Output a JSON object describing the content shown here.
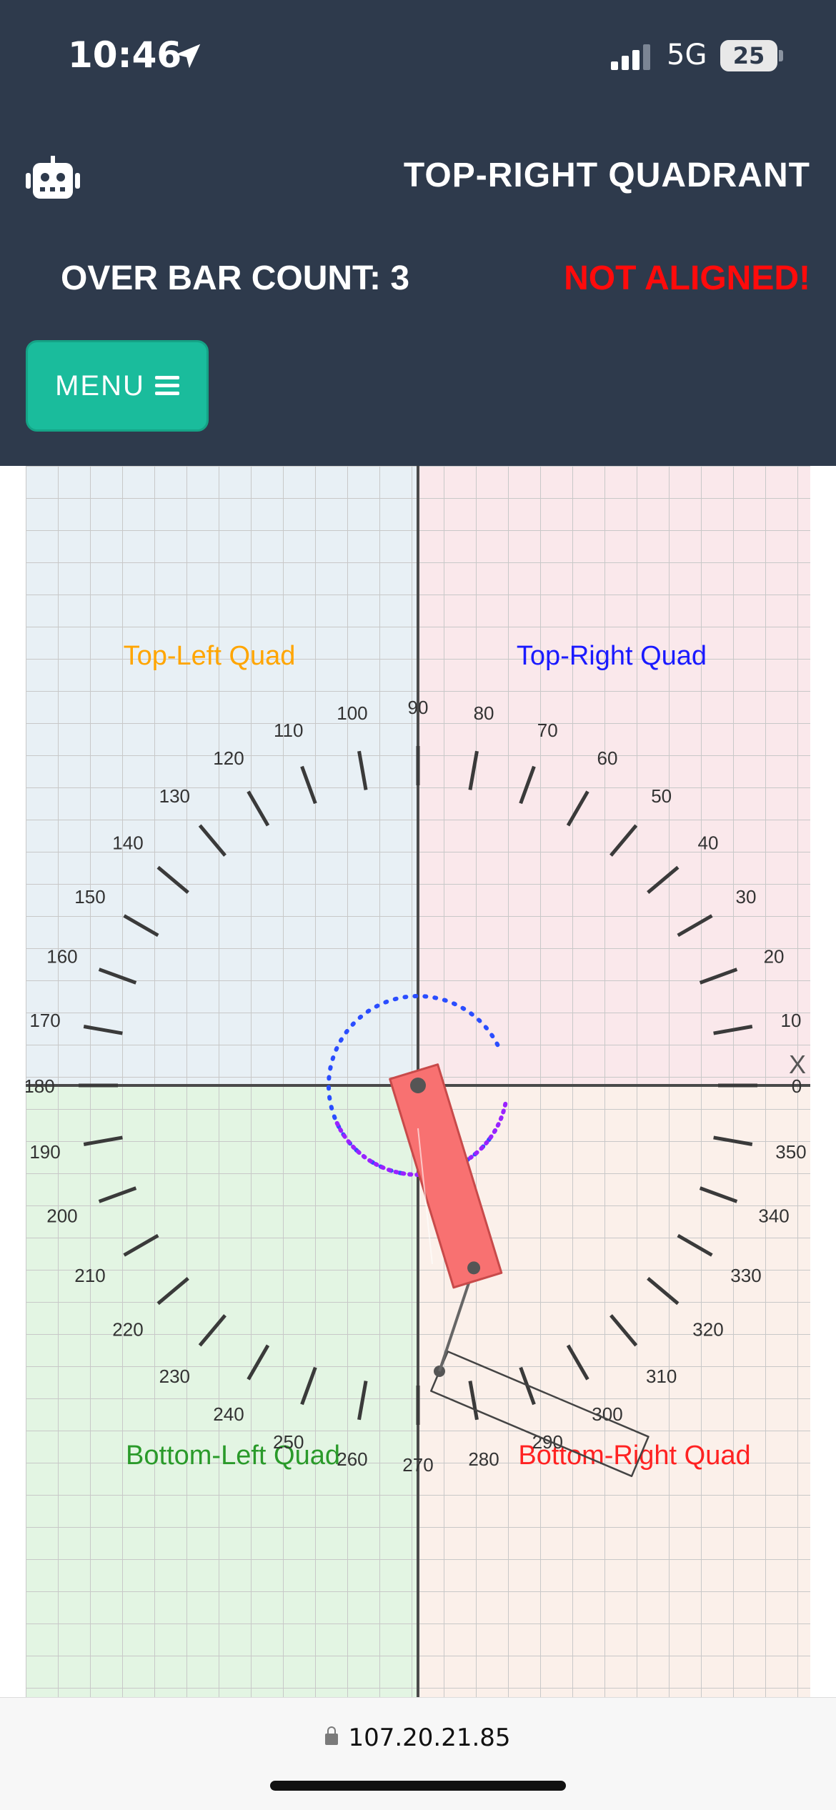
{
  "status_bar": {
    "time": "10:46",
    "network": "5G",
    "battery": "25",
    "location_icon": "location-arrow-icon",
    "signal_icon": "signal-bars-icon"
  },
  "header": {
    "logo_icon": "robot-icon",
    "title": "TOP-RIGHT QUADRANT",
    "bar_count": "OVER BAR COUNT: 3",
    "alignment_status": "NOT ALIGNED!",
    "menu_label": "MENU",
    "menu_icon": "hamburger-icon"
  },
  "board": {
    "quadrant_labels": {
      "top_left": "Top-Left Quad",
      "top_right": "Top-Right Quad",
      "bottom_left": "Bottom-Left Quad",
      "bottom_right": "Bottom-Right Quad"
    },
    "axis_label": "X",
    "degree_labels": [
      "0",
      "10",
      "20",
      "30",
      "40",
      "50",
      "60",
      "70",
      "80",
      "90",
      "100",
      "110",
      "120",
      "130",
      "140",
      "150",
      "160",
      "170",
      "180",
      "190",
      "200",
      "210",
      "220",
      "230",
      "240",
      "250",
      "260",
      "270",
      "280",
      "290",
      "300",
      "310",
      "320",
      "330",
      "340",
      "350"
    ],
    "quadrant_colors": {
      "top_left": "#e8f0f5",
      "top_right": "#fae8eb",
      "bottom_left": "#e3f5e3",
      "bottom_right": "#fbf0ea"
    },
    "label_colors": {
      "top_left": "#ffa500",
      "top_right": "#1a1aff",
      "bottom_left": "#2a9a2a",
      "bottom_right": "#ff2222"
    },
    "bar_color": "#f87171",
    "current_bar_angle_deg": 287,
    "target_bar_angle_deg": 337
  },
  "browser": {
    "url": "107.20.21.85",
    "lock_icon": "lock-icon"
  }
}
